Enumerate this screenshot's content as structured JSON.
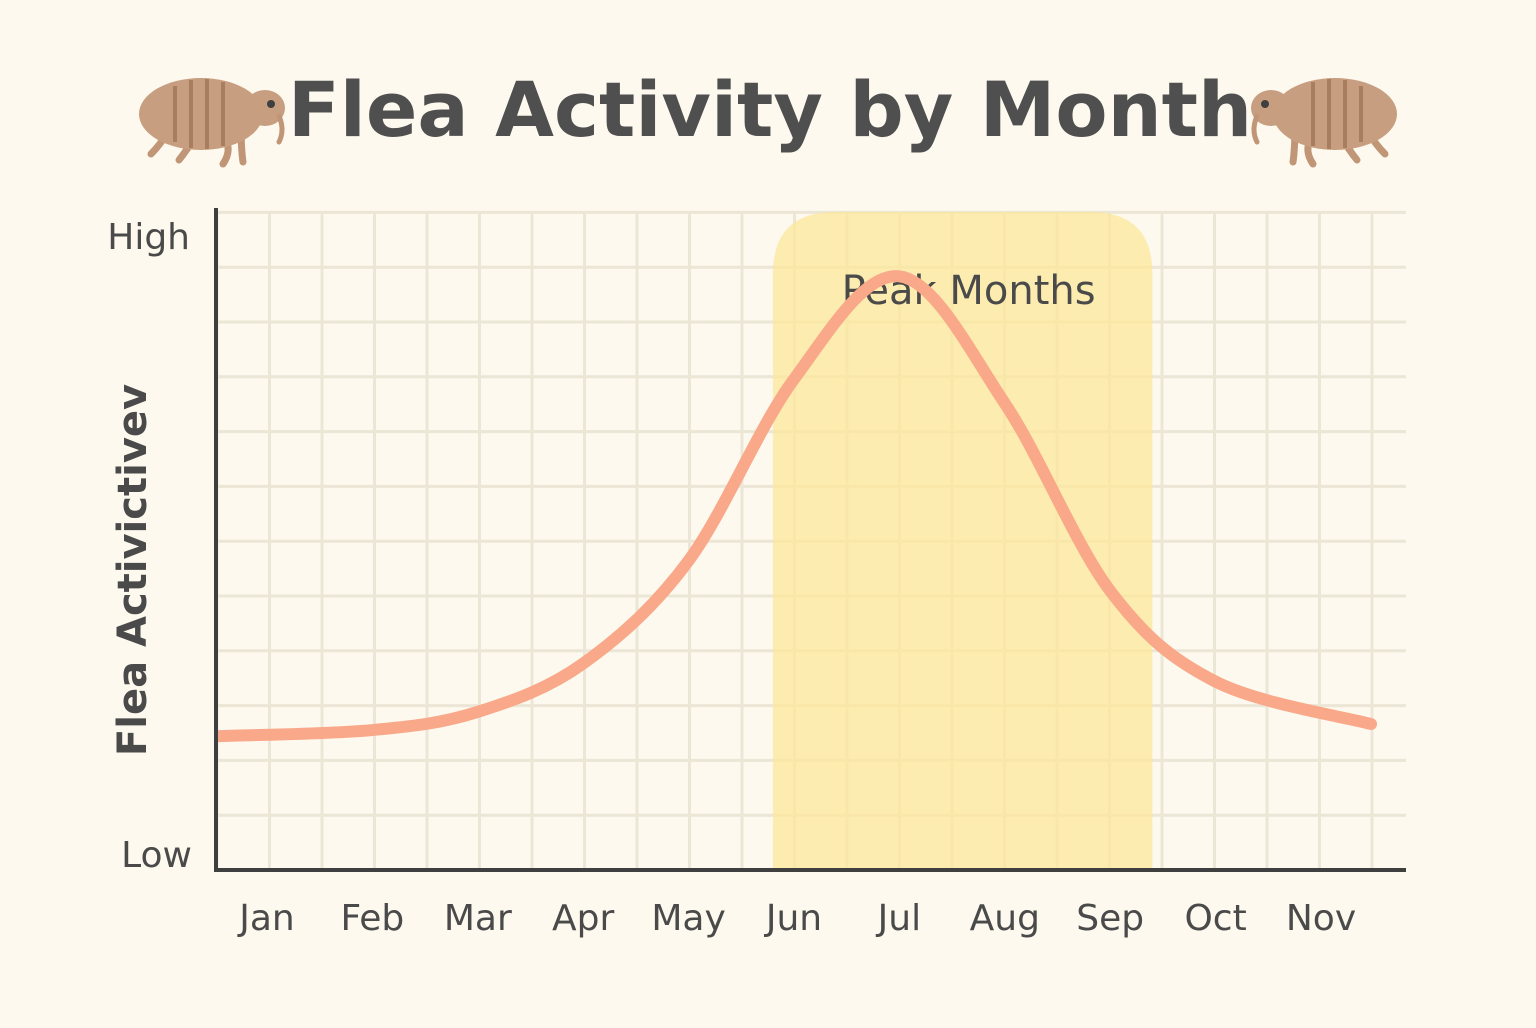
{
  "theme": {
    "background": "#fdf9ee",
    "grid_color": "#ece6d6",
    "axis_color": "#3f3f3f",
    "text_color": "#4a4a4a",
    "curve_color": "#f9a88a",
    "highlight_color": "#fce79a",
    "flea_body": "#c79e80",
    "flea_stripe": "#a97d5f",
    "flea_legs": "#c09677"
  },
  "decorations": {
    "left_icon": "flea-icon",
    "right_icon": "flea-icon"
  },
  "chart_data": {
    "type": "line",
    "title": "Flea Activity by Month",
    "xlabel": "",
    "ylabel": "Flea Activictivеv",
    "categories": [
      "Jan",
      "Feb",
      "Mar",
      "Apr",
      "May",
      "Jun",
      "Jul",
      "Aug",
      "Sep",
      "Oct",
      "Nov"
    ],
    "y_tick_labels": [
      "Low",
      "High"
    ],
    "ylim": [
      0,
      100
    ],
    "grid": true,
    "series": [
      {
        "values": [
          18,
          19,
          22,
          30,
          47,
          77,
          94,
          73,
          42,
          27,
          20
        ]
      }
    ],
    "highlight": {
      "label": "Peak Months",
      "from": 4.8,
      "to": 8.4
    }
  }
}
